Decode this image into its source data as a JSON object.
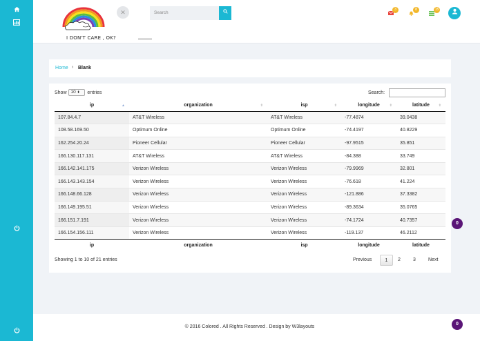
{
  "sidebar": {
    "icons": [
      "home-icon",
      "chart-icon",
      "power-icon"
    ]
  },
  "header": {
    "logo_text": "I DON'T CARE , OK?",
    "close_glyph": "✕",
    "search_placeholder": "Search",
    "notifications": [
      {
        "icon": "mail-icon",
        "count": "3",
        "color": "#e9473f"
      },
      {
        "icon": "bell-icon",
        "count": "8",
        "color": "#f2b72a"
      },
      {
        "icon": "tasks-icon",
        "count": "15",
        "color": "#6ac259"
      }
    ]
  },
  "breadcrumb": {
    "home": "Home",
    "separator": "›",
    "current": "Blank"
  },
  "table": {
    "show_prefix": "Show",
    "length_value": "10",
    "show_suffix": "entries",
    "search_label": "Search:",
    "columns": [
      "ip",
      "organization",
      "isp",
      "longitude",
      "latitude"
    ],
    "rows": [
      [
        "107.84.4.7",
        "AT&T Wireless",
        "AT&T Wireless",
        "-77.4874",
        "39.0438"
      ],
      [
        "108.58.169.50",
        "Optimum Online",
        "Optimum Online",
        "-74.4197",
        "40.8229"
      ],
      [
        "162.254.20.24",
        "Pioneer Cellular",
        "Pioneer Cellular",
        "-97.9515",
        "35.851"
      ],
      [
        "166.130.117.131",
        "AT&T Wireless",
        "AT&T Wireless",
        "-84.388",
        "33.749"
      ],
      [
        "166.142.141.175",
        "Verizon Wireless",
        "Verizon Wireless",
        "-79.9969",
        "32.801"
      ],
      [
        "166.143.143.154",
        "Verizon Wireless",
        "Verizon Wireless",
        "-76.618",
        "41.224"
      ],
      [
        "166.148.66.128",
        "Verizon Wireless",
        "Verizon Wireless",
        "-121.886",
        "37.3382"
      ],
      [
        "166.149.195.51",
        "Verizon Wireless",
        "Verizon Wireless",
        "-89.3634",
        "35.0765"
      ],
      [
        "166.151.7.191",
        "Verizon Wireless",
        "Verizon Wireless",
        "-74.1724",
        "40.7357"
      ],
      [
        "166.154.156.111",
        "Verizon Wireless",
        "Verizon Wireless",
        "-119.137",
        "46.2112"
      ]
    ],
    "info": "Showing 1 to 10 of 21 entries",
    "pagination": {
      "previous": "Previous",
      "pages": [
        "1",
        "2",
        "3"
      ],
      "current": "1",
      "next": "Next"
    }
  },
  "floating_badge": "0",
  "footer": {
    "text": "© 2016 Colored . All Rights Reserved . Design by W3layouts",
    "badge": "0"
  },
  "colors": {
    "accent": "#1bb8d3",
    "badge_purple": "#5a1577"
  }
}
